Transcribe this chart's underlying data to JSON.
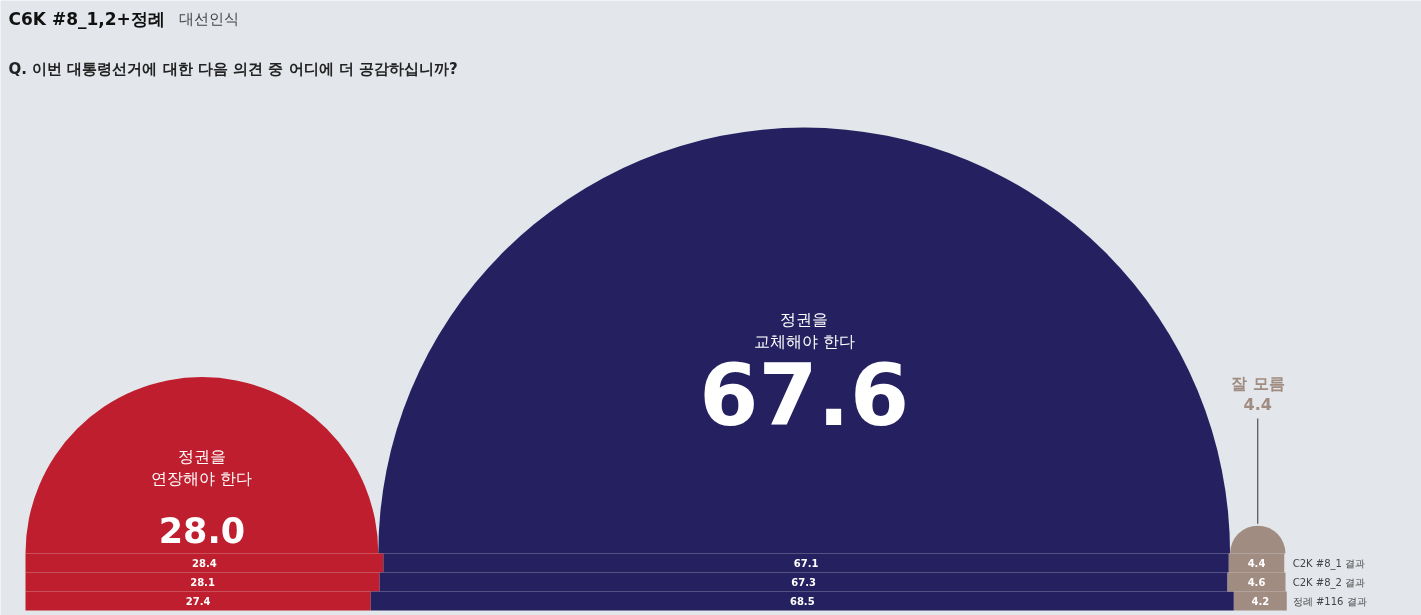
{
  "chart_data": [
    {
      "type": "other",
      "title": "C6K #8_1,2+정례",
      "subtitle": "Q. 이번 대통령선거에 대한 다음 의견 중 어디에 더 공감하십니까?",
      "annotations": [
        "대선인식"
      ],
      "categories": [
        "정권을 연장해야 한다",
        "정권을 교체해야 한다",
        "잘 모름"
      ],
      "values": [
        28.0,
        67.6,
        4.4
      ],
      "value_labels": [
        "28.0",
        "67.6",
        "4.4"
      ],
      "colors": [
        "#be1e2d",
        "#252060",
        "#a08c80"
      ]
    },
    {
      "type": "bar",
      "orientation": "horizontal",
      "stacked": true,
      "data_labels": true,
      "categories": [
        "C2K #8_1 결과",
        "C2K #8_2 결과",
        "정례 #116 결과"
      ],
      "series": [
        {
          "color": "#be1e2d",
          "values": [
            28.4,
            28.1,
            27.4
          ]
        },
        {
          "color": "#252060",
          "values": [
            67.1,
            67.3,
            68.5
          ]
        },
        {
          "color": "#a08c80",
          "values": [
            4.4,
            4.6,
            4.2
          ]
        }
      ]
    }
  ]
}
